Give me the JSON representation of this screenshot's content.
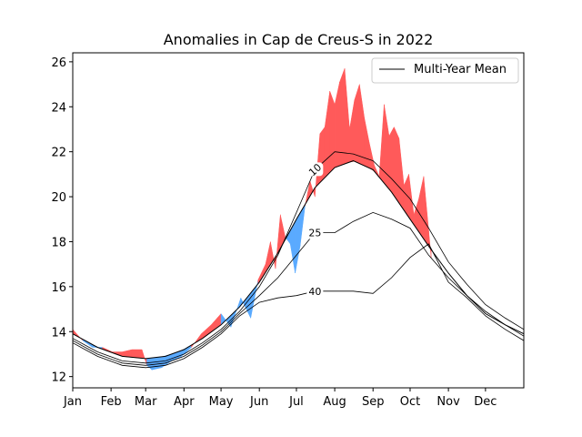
{
  "chart_data": {
    "type": "area",
    "title": "Anomalies in Cap de Creus-S in 2022",
    "xlabel": "",
    "ylabel": "",
    "xlim": [
      0,
      365
    ],
    "ylim": [
      11.5,
      26.4
    ],
    "x_ticks": [
      {
        "label": "Jan",
        "day": 0
      },
      {
        "label": "Feb",
        "day": 31
      },
      {
        "label": "Mar",
        "day": 59
      },
      {
        "label": "Apr",
        "day": 90
      },
      {
        "label": "May",
        "day": 120
      },
      {
        "label": "Jun",
        "day": 151
      },
      {
        "label": "Jul",
        "day": 181
      },
      {
        "label": "Aug",
        "day": 212
      },
      {
        "label": "Sep",
        "day": 243
      },
      {
        "label": "Oct",
        "day": 273
      },
      {
        "label": "Nov",
        "day": 304
      },
      {
        "label": "Dec",
        "day": 334
      }
    ],
    "y_ticks": [
      12,
      14,
      16,
      18,
      20,
      22,
      24,
      26
    ],
    "legend": {
      "position": "top-right",
      "entries": [
        "Multi-Year Mean"
      ]
    },
    "grid": false,
    "colors": {
      "warm_anomaly": "#ff5a5a",
      "cold_anomaly": "#5aaaff",
      "mean_line": "#000000"
    },
    "series": [
      {
        "name": "Multi-Year Mean",
        "x": [
          0,
          20,
          40,
          59,
          75,
          90,
          105,
          120,
          135,
          151,
          166,
          181,
          196,
          212,
          227,
          243,
          258,
          273,
          288,
          304,
          319,
          334,
          350,
          365
        ],
        "y": [
          13.9,
          13.3,
          12.9,
          12.8,
          12.9,
          13.2,
          13.7,
          14.3,
          15.1,
          16.2,
          17.5,
          19.0,
          20.4,
          21.3,
          21.6,
          21.2,
          20.2,
          19.0,
          17.8,
          16.6,
          15.6,
          14.8,
          14.3,
          13.9
        ]
      }
    ],
    "contours": [
      {
        "label": "10",
        "x": [
          0,
          20,
          40,
          59,
          75,
          90,
          105,
          120,
          135,
          151,
          166,
          181,
          196,
          212,
          227,
          243,
          258,
          273,
          288,
          304,
          319,
          334,
          350,
          365
        ],
        "y": [
          13.7,
          13.1,
          12.7,
          12.6,
          12.7,
          13.0,
          13.5,
          14.1,
          14.9,
          16.0,
          17.4,
          19.3,
          21.2,
          22.0,
          21.9,
          21.6,
          20.8,
          19.9,
          18.6,
          17.1,
          16.1,
          15.2,
          14.6,
          14.1
        ]
      },
      {
        "label": "25",
        "x": [
          0,
          20,
          40,
          59,
          75,
          90,
          105,
          120,
          135,
          151,
          166,
          181,
          196,
          212,
          227,
          243,
          258,
          273,
          288,
          304,
          319,
          334,
          350,
          365
        ],
        "y": [
          13.6,
          13.0,
          12.6,
          12.5,
          12.6,
          12.9,
          13.4,
          14.0,
          14.8,
          15.6,
          16.4,
          17.4,
          18.4,
          18.4,
          18.9,
          19.3,
          19.0,
          18.6,
          17.4,
          16.4,
          15.6,
          14.9,
          14.3,
          13.8
        ]
      },
      {
        "label": "40",
        "x": [
          0,
          20,
          40,
          59,
          75,
          90,
          105,
          120,
          135,
          151,
          166,
          181,
          196,
          212,
          227,
          243,
          258,
          273,
          288,
          304,
          319,
          334,
          350,
          365
        ],
        "y": [
          13.5,
          12.9,
          12.5,
          12.4,
          12.5,
          12.8,
          13.3,
          13.9,
          14.7,
          15.3,
          15.5,
          15.6,
          15.8,
          15.8,
          15.8,
          15.7,
          16.4,
          17.3,
          17.9,
          16.2,
          15.5,
          14.7,
          14.1,
          13.6
        ]
      }
    ],
    "observed_2022": {
      "x": [
        0,
        8,
        16,
        24,
        32,
        40,
        48,
        56,
        60,
        64,
        72,
        80,
        88,
        96,
        104,
        112,
        120,
        128,
        136,
        144,
        150,
        156,
        160,
        164,
        168,
        172,
        176,
        180,
        184,
        188,
        192,
        196,
        200,
        204,
        208,
        212,
        216,
        220,
        224,
        228,
        232,
        236,
        240,
        244,
        248,
        252,
        256,
        260,
        264,
        268,
        272,
        276,
        280,
        284,
        288,
        290
      ],
      "y": [
        14.1,
        13.6,
        13.3,
        13.3,
        13.1,
        13.1,
        13.2,
        13.2,
        12.5,
        12.3,
        12.4,
        12.7,
        12.9,
        13.3,
        13.9,
        14.3,
        14.8,
        14.2,
        15.5,
        14.6,
        16.3,
        17.0,
        18.0,
        16.8,
        19.2,
        18.2,
        17.9,
        16.6,
        17.8,
        19.6,
        20.7,
        20.0,
        22.8,
        23.1,
        24.7,
        24.1,
        25.1,
        25.7,
        23.0,
        24.3,
        25.0,
        23.5,
        22.4,
        21.4,
        20.9,
        24.1,
        22.7,
        23.1,
        22.6,
        20.5,
        21.0,
        19.2,
        19.9,
        20.9,
        18.5,
        17.3
      ]
    }
  }
}
